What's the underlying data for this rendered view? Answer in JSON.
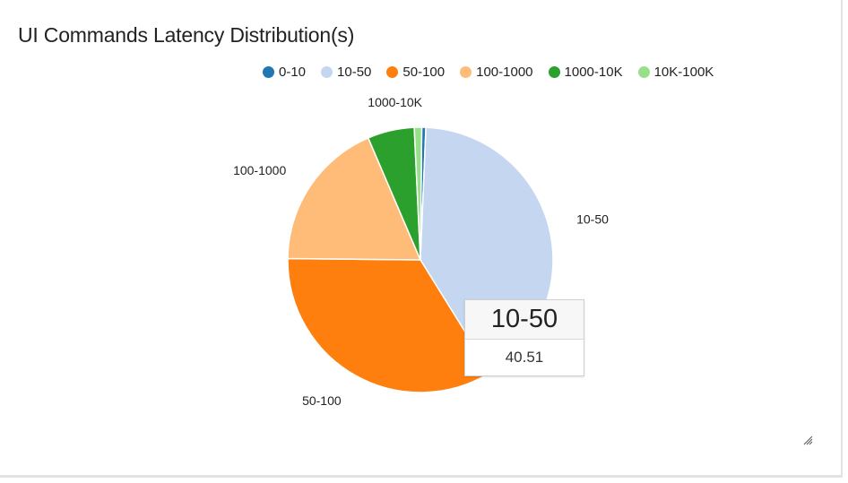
{
  "colors": {
    "background": "#ffffff",
    "slice_colors": [
      "#1f77b4",
      "#c5d7f0",
      "#ff7f0e",
      "#ffbb78",
      "#2ca02c",
      "#98df8a"
    ]
  },
  "chart_data": {
    "type": "pie",
    "title": "UI Commands Latency Distribution(s)",
    "categories": [
      "0-10",
      "10-50",
      "50-100",
      "100-1000",
      "1000-10K",
      "10K-100K"
    ],
    "values": [
      0.5,
      40.51,
      34.0,
      18.4,
      5.7,
      0.9
    ],
    "legend_position": "top",
    "slice_labels": [
      {
        "category": "10-50",
        "text": "10-50"
      },
      {
        "category": "50-100",
        "text": "50-100"
      },
      {
        "category": "100-1000",
        "text": "100-1000"
      },
      {
        "category": "1000-10K",
        "text": "1000-10K"
      }
    ],
    "tooltip": {
      "category": "10-50",
      "value": "40.51"
    }
  },
  "icons": {
    "resize": "resize-grip-icon"
  }
}
